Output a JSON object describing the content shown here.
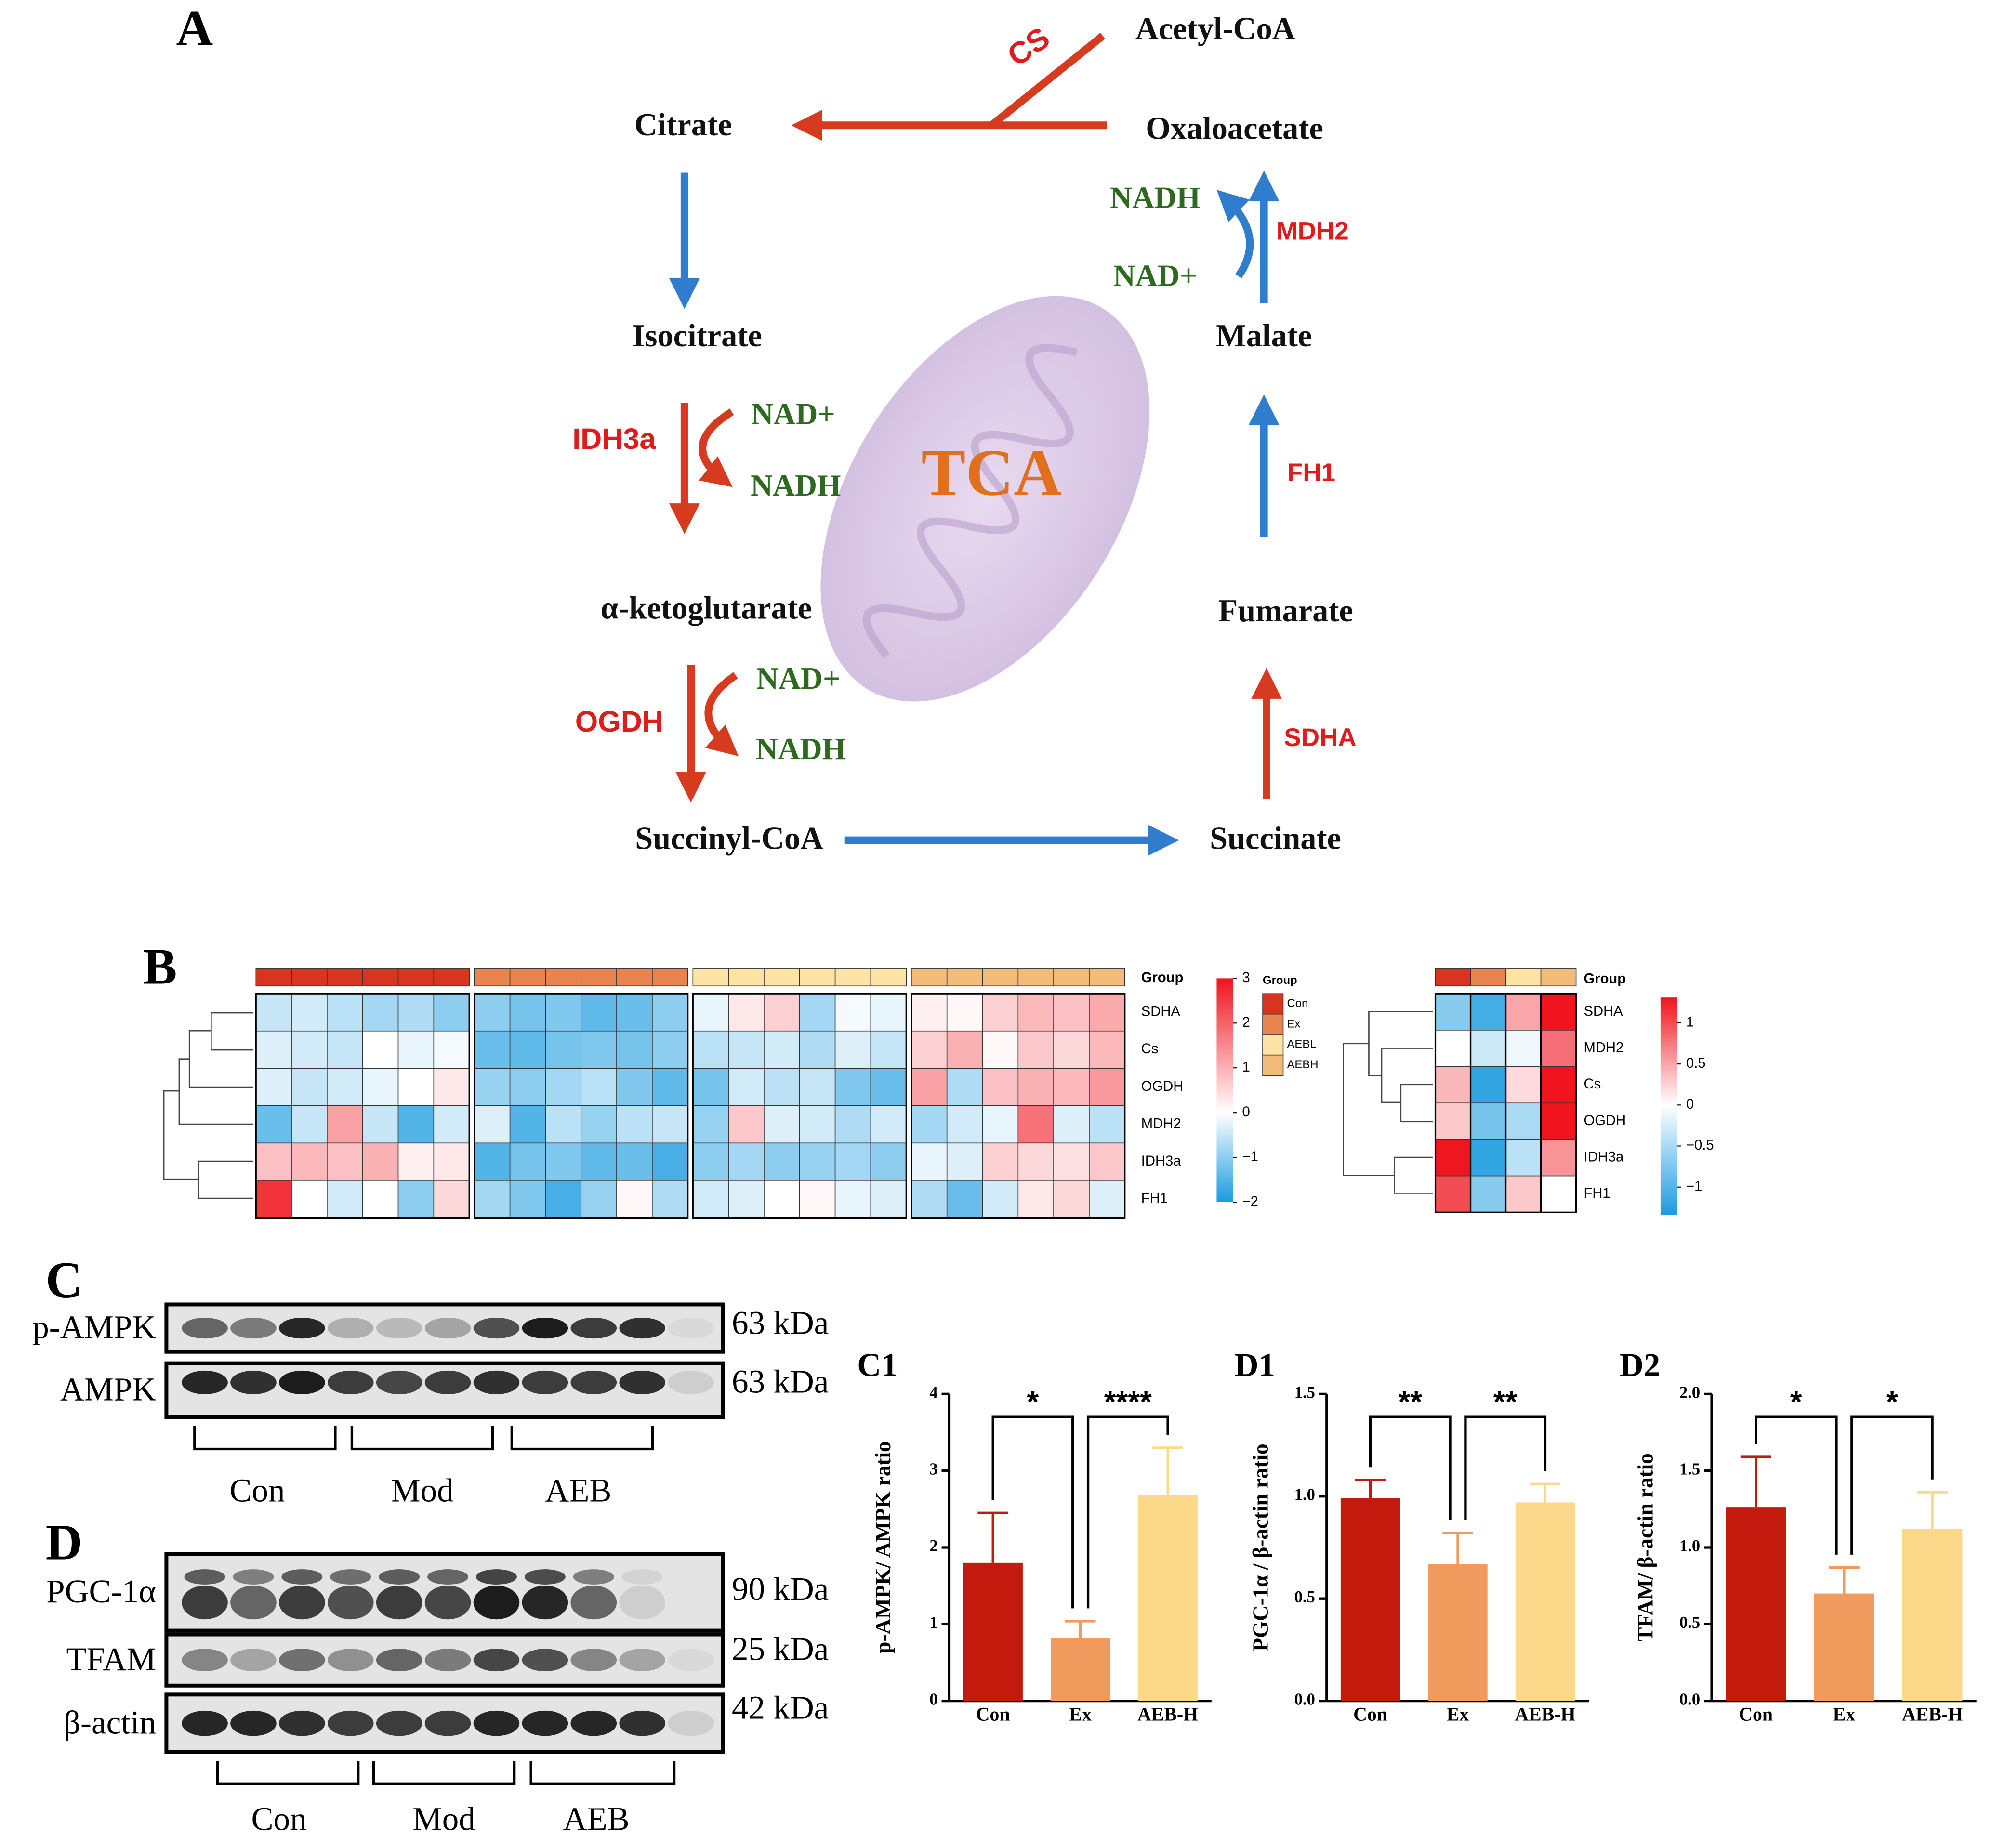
{
  "panel_a": {
    "label": "A",
    "center_label": "TCA",
    "metabolites": [
      "Acetyl-CoA",
      "Oxaloacetate",
      "Citrate",
      "Isocitrate",
      "α-ketoglutarate",
      "Succinyl-CoA",
      "Succinate",
      "Fumarate",
      "Malate"
    ],
    "enzymes": [
      "CS",
      "IDH3a",
      "OGDH",
      "SDHA",
      "FH1",
      "MDH2"
    ],
    "cofactors": [
      "NAD+",
      "NADH",
      "NAD+",
      "NADH",
      "NAD+",
      "NADH"
    ]
  },
  "panel_b": {
    "label": "B",
    "group_label": "Group",
    "legend": {
      "title": "Group",
      "groups": [
        "Con",
        "Ex",
        "AEBL",
        "AEBH"
      ],
      "colors": [
        "#d8341f",
        "#e8844f",
        "#fde4a4",
        "#f3bb79"
      ]
    },
    "colorscale": {
      "low": "#1a9be0",
      "mid": "#ffffff",
      "high": "#f0141e"
    },
    "left_heatmap": {
      "rows": [
        "SDHA",
        "Cs",
        "OGDH",
        "MDH2",
        "IDH3a",
        "FH1"
      ],
      "values": [
        [
          -0.5,
          -0.4,
          -0.6,
          -0.8,
          -0.7,
          -1.0,
          -1.0,
          -1.2,
          -1.1,
          -1.4,
          -1.3,
          -1.0,
          -0.2,
          0.3,
          0.6,
          -0.8,
          -0.1,
          -0.2,
          0.2,
          0.1,
          0.6,
          0.9,
          0.8,
          1.1
        ],
        [
          -0.3,
          -0.4,
          -0.5,
          0,
          -0.2,
          -0.1,
          -1.3,
          -1.4,
          -1.2,
          -1.1,
          -1.2,
          -1.0,
          -0.6,
          -0.5,
          -0.4,
          -0.7,
          -0.3,
          -0.5,
          0.6,
          1.0,
          0.1,
          0.7,
          0.5,
          0.9
        ],
        [
          -0.3,
          -0.5,
          -0.4,
          -0.2,
          0,
          0.3,
          -0.9,
          -1.0,
          -0.8,
          -0.6,
          -1.1,
          -1.4,
          -1.2,
          -0.4,
          -0.6,
          -0.5,
          -1.1,
          -1.3,
          1.2,
          -0.7,
          0.8,
          1.0,
          0.9,
          1.3
        ],
        [
          -1.3,
          -0.5,
          1.2,
          -0.5,
          -1.5,
          -0.4,
          -0.3,
          -1.5,
          -0.6,
          -0.9,
          -0.6,
          -0.5,
          -0.9,
          0.7,
          -0.3,
          -0.4,
          -0.7,
          -0.4,
          -0.8,
          -0.4,
          -0.2,
          1.8,
          -0.3,
          -0.6
        ],
        [
          0.8,
          0.9,
          0.8,
          1.0,
          0.2,
          0.3,
          -1.5,
          -1.2,
          -1.1,
          -1.4,
          -1.3,
          -1.6,
          -1.0,
          -0.8,
          -1.0,
          -0.9,
          -0.8,
          -1.0,
          -0.2,
          -0.3,
          0.6,
          0.5,
          0.4,
          0.7
        ],
        [
          2.6,
          0,
          -0.4,
          0,
          -1.0,
          0.5,
          -0.8,
          -1.1,
          -1.6,
          -0.9,
          0.1,
          -0.7,
          -0.4,
          -0.3,
          0,
          0.1,
          -0.2,
          -0.3,
          -0.7,
          -1.3,
          -0.4,
          0.3,
          0.5,
          -0.3
        ]
      ],
      "clim": [
        -2,
        3
      ],
      "ticks": [
        {
          "value": 3,
          "label": "3"
        },
        {
          "value": 2,
          "label": "2"
        },
        {
          "value": 1,
          "label": "1"
        },
        {
          "value": 0,
          "label": "0"
        },
        {
          "value": -1,
          "label": "−1"
        },
        {
          "value": -2,
          "label": "−2"
        }
      ]
    },
    "right_heatmap": {
      "rows": [
        "SDHA",
        "MDH2",
        "Cs",
        "OGDH",
        "IDH3a",
        "FH1"
      ],
      "values": [
        [
          -0.7,
          -1.1,
          0.5,
          1.4
        ],
        [
          0,
          -0.3,
          -0.1,
          0.8
        ],
        [
          0.4,
          -1.2,
          0.2,
          1.4
        ],
        [
          0.3,
          -0.8,
          -0.5,
          1.4
        ],
        [
          1.3,
          -1.2,
          -0.4,
          0.6
        ],
        [
          1.0,
          -0.7,
          0.3,
          0
        ]
      ],
      "clim": [
        -1.34,
        1.31
      ],
      "ticks": [
        1,
        0.5,
        0,
        {
          "value": -0.5,
          "label": "−0.5"
        },
        {
          "value": -1,
          "label": "−1"
        }
      ]
    }
  },
  "panel_c": {
    "label": "C",
    "blots": [
      {
        "name": "p-AMPK",
        "size": "63 kDa"
      },
      {
        "name": "AMPK",
        "size": "63 kDa"
      }
    ],
    "groups": [
      "Con",
      "Mod",
      "AEB"
    ]
  },
  "panel_d": {
    "label": "D",
    "blots": [
      {
        "name": "PGC-1α",
        "size": "90 kDa"
      },
      {
        "name": "TFAM",
        "size": "25 kDa"
      },
      {
        "name": "β-actin",
        "size": "42 kDa"
      }
    ],
    "groups": [
      "Con",
      "Mod",
      "AEB"
    ]
  },
  "charts": [
    {
      "type": "bar",
      "label": "C1",
      "ylabel": "p-AMPK/ AMPK ratio",
      "categories": [
        "Con",
        "Ex",
        "AEB-H"
      ],
      "values": [
        1.8,
        0.82,
        2.68
      ],
      "errors": [
        0.65,
        0.22,
        0.62
      ],
      "colors": [
        "#c41a0d",
        "#f09a5e",
        "#fcd88a"
      ],
      "ylim": [
        0,
        4
      ],
      "yticks": [
        0,
        1,
        2,
        3,
        4
      ],
      "significance": [
        "*",
        "****"
      ]
    },
    {
      "type": "bar",
      "label": "D1",
      "ylabel": "PGC-1α / β-actin ratio",
      "categories": [
        "Con",
        "Ex",
        "AEB-H"
      ],
      "values": [
        0.99,
        0.67,
        0.97
      ],
      "errors": [
        0.09,
        0.15,
        0.09
      ],
      "colors": [
        "#c41a0d",
        "#f09a5e",
        "#fcd88a"
      ],
      "ylim": [
        0,
        1.5
      ],
      "yticks": [
        {
          "value": 0,
          "label": "0.0"
        },
        {
          "value": 0.5,
          "label": "0.5"
        },
        {
          "value": 1,
          "label": "1.0"
        },
        {
          "value": 1.5,
          "label": "1.5"
        }
      ],
      "significance": [
        "**",
        "**"
      ]
    },
    {
      "type": "bar",
      "label": "D2",
      "ylabel": "TFAM/ β-actin ratio",
      "categories": [
        "Con",
        "Ex",
        "AEB-H"
      ],
      "values": [
        1.26,
        0.7,
        1.12
      ],
      "errors": [
        0.33,
        0.17,
        0.24
      ],
      "colors": [
        "#c41a0d",
        "#f09a5e",
        "#fcd88a"
      ],
      "ylim": [
        0,
        2
      ],
      "yticks": [
        {
          "value": 0,
          "label": "0.0"
        },
        {
          "value": 0.5,
          "label": "0.5"
        },
        {
          "value": 1,
          "label": "1.0"
        },
        {
          "value": 1.5,
          "label": "1.5"
        },
        {
          "value": 2,
          "label": "2.0"
        }
      ],
      "significance": [
        "*",
        "*"
      ]
    }
  ]
}
